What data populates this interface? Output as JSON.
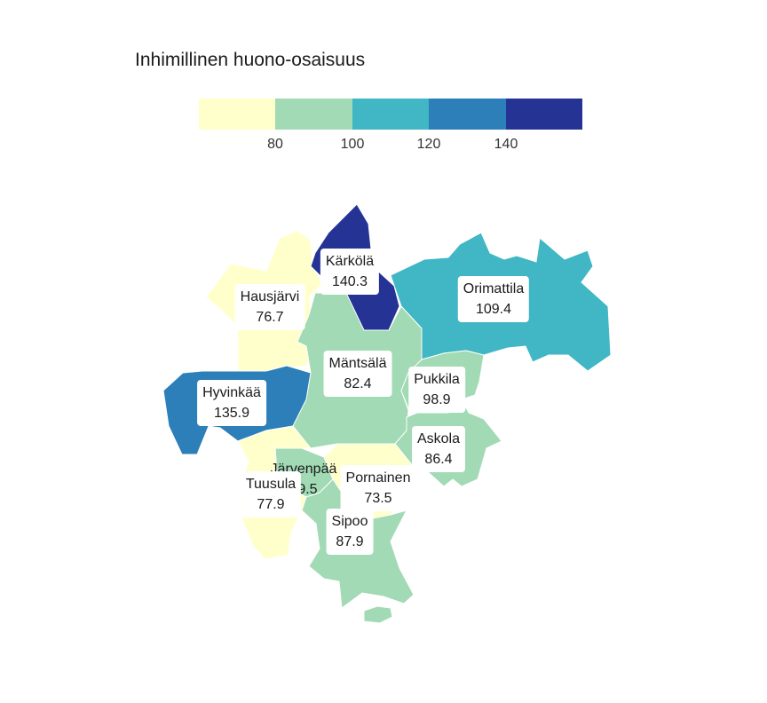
{
  "title": "Inhimillinen huono-osaisuus",
  "legend": {
    "colors": [
      "#ffffcc",
      "#a1dab4",
      "#41b6c4",
      "#2c7fb8",
      "#253494"
    ],
    "ticks": [
      "80",
      "100",
      "120",
      "140"
    ]
  },
  "regions": [
    {
      "key": "hausjarvi",
      "name": "Hausjärvi",
      "value": "76.7",
      "color": "#ffffcc"
    },
    {
      "key": "karkola",
      "name": "Kärkölä",
      "value": "140.3",
      "color": "#253494"
    },
    {
      "key": "orimattila",
      "name": "Orimattila",
      "value": "109.4",
      "color": "#41b6c4"
    },
    {
      "key": "mantsala",
      "name": "Mäntsälä",
      "value": "82.4",
      "color": "#a1dab4"
    },
    {
      "key": "pukkila",
      "name": "Pukkila",
      "value": "98.9",
      "color": "#a1dab4"
    },
    {
      "key": "hyvinkaa",
      "name": "Hyvinkää",
      "value": "135.9",
      "color": "#2c7fb8"
    },
    {
      "key": "askola",
      "name": "Askola",
      "value": "86.4",
      "color": "#a1dab4"
    },
    {
      "key": "jarvenpaa",
      "name": "Järvenpää",
      "value": "89.5",
      "color": "#a1dab4"
    },
    {
      "key": "pornainen",
      "name": "Pornainen",
      "value": "73.5",
      "color": "#ffffcc"
    },
    {
      "key": "tuusula",
      "name": "Tuusula",
      "value": "77.9",
      "color": "#ffffcc"
    },
    {
      "key": "sipoo",
      "name": "Sipoo",
      "value": "87.9",
      "color": "#a1dab4"
    }
  ]
}
